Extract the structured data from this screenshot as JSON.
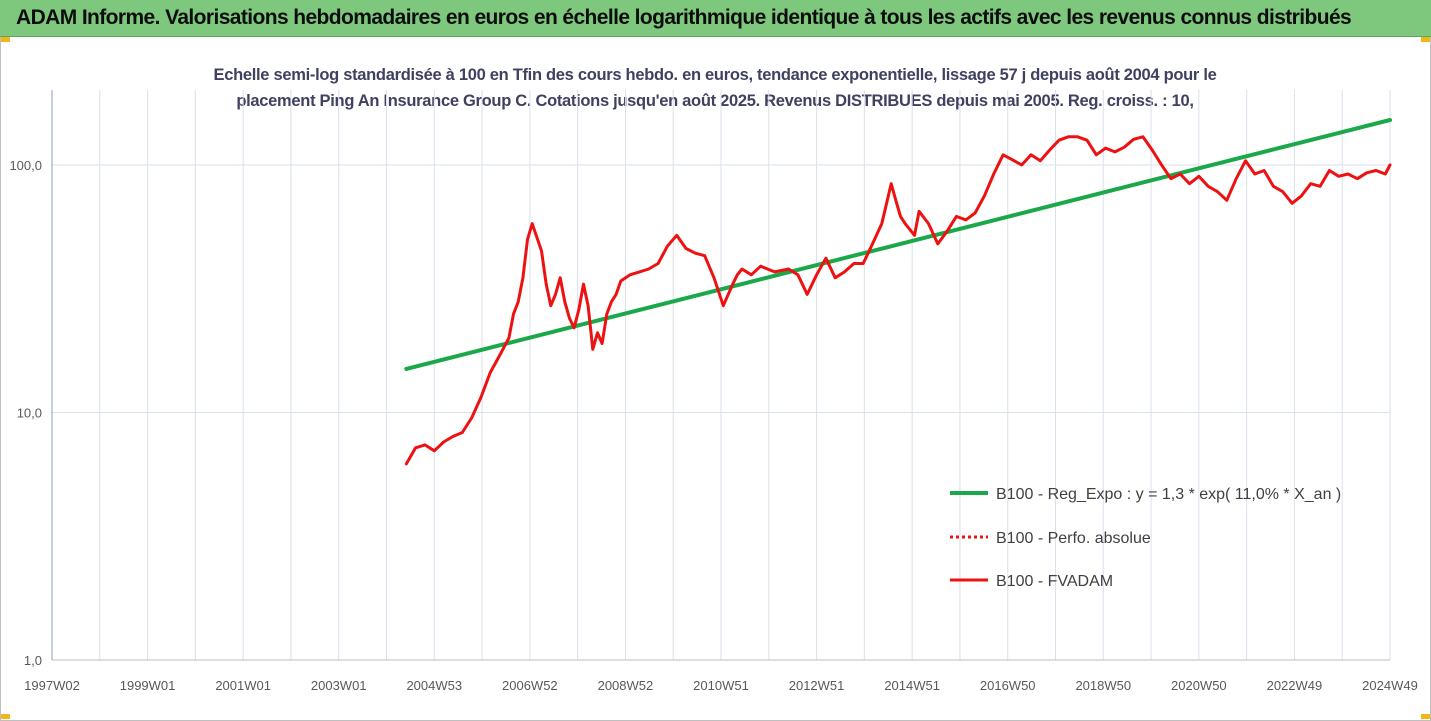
{
  "header": {
    "title": "ADAM Informe. Valorisations hebdomadaires en euros en échelle logarithmique identique à tous les actifs avec les revenus connus distribués"
  },
  "colors": {
    "banner": "#7dc87d",
    "regression": "#1aa84a",
    "fvadam": "#ee1111",
    "grid": "#d9e1ec"
  },
  "chart_data": {
    "type": "line",
    "title_line1": "Echelle semi-log standardisée à 100 en Tfin des cours hebdo. en euros, tendance exponentielle, lissage 57 j depuis août 2004 pour le",
    "title_line2": "placement Ping An Insurance Group C. Cotations jusqu'en août 2025.  Revenus DISTRIBUES depuis mai 2005. Reg. croiss. : 10,",
    "y_scale": "log",
    "ylim": [
      1,
      200
    ],
    "y_ticks": [
      "1,0",
      "10,0",
      "100,0"
    ],
    "x_tick_labels": [
      "1997W02",
      "1999W01",
      "2001W01",
      "2003W01",
      "2004W53",
      "2006W52",
      "2008W52",
      "2010W51",
      "2012W51",
      "2014W51",
      "2016W50",
      "2018W50",
      "2020W50",
      "2022W49",
      "2024W49"
    ],
    "x_range": [
      1997.0,
      2025.7
    ],
    "grid": "vertical",
    "legend_position": "right",
    "series": [
      {
        "name": "B100 - Reg_Expo : y = 1,3 * exp( 11,0% *  X_an )",
        "style": "solid-thick",
        "color": "#1aa84a",
        "x": [
          2004.6,
          2025.7
        ],
        "y": [
          15.0,
          152.0
        ]
      },
      {
        "name": "B100 - Perfo. absolue",
        "style": "dotted",
        "color": "#ee1111",
        "x": [],
        "y": []
      },
      {
        "name": "B100 - FVADAM",
        "style": "solid",
        "color": "#ee1111",
        "x": [
          2004.6,
          2004.8,
          2005.0,
          2005.2,
          2005.4,
          2005.6,
          2005.8,
          2006.0,
          2006.2,
          2006.4,
          2006.6,
          2006.8,
          2006.9,
          2007.0,
          2007.1,
          2007.2,
          2007.3,
          2007.5,
          2007.6,
          2007.7,
          2007.8,
          2007.9,
          2008.0,
          2008.1,
          2008.2,
          2008.3,
          2008.4,
          2008.5,
          2008.6,
          2008.7,
          2008.8,
          2008.9,
          2009.0,
          2009.1,
          2009.2,
          2009.4,
          2009.6,
          2009.8,
          2010.0,
          2010.2,
          2010.4,
          2010.6,
          2010.8,
          2011.0,
          2011.2,
          2011.4,
          2011.6,
          2011.7,
          2011.8,
          2012.0,
          2012.2,
          2012.5,
          2012.8,
          2013.0,
          2013.2,
          2013.4,
          2013.6,
          2013.8,
          2014.0,
          2014.2,
          2014.4,
          2014.6,
          2014.8,
          2015.0,
          2015.1,
          2015.2,
          2015.3,
          2015.5,
          2015.6,
          2015.8,
          2016.0,
          2016.2,
          2016.4,
          2016.6,
          2016.8,
          2017.0,
          2017.2,
          2017.4,
          2017.6,
          2017.8,
          2018.0,
          2018.2,
          2018.4,
          2018.6,
          2018.8,
          2019.0,
          2019.2,
          2019.4,
          2019.6,
          2019.8,
          2020.0,
          2020.2,
          2020.4,
          2020.6,
          2020.8,
          2021.0,
          2021.2,
          2021.4,
          2021.6,
          2021.8,
          2022.0,
          2022.2,
          2022.4,
          2022.6,
          2022.8,
          2023.0,
          2023.2,
          2023.4,
          2023.6,
          2023.8,
          2024.0,
          2024.2,
          2024.4,
          2024.6,
          2024.8,
          2025.0,
          2025.2,
          2025.4,
          2025.6,
          2025.7
        ],
        "y": [
          6.2,
          7.2,
          7.4,
          7.0,
          7.6,
          8.0,
          8.3,
          9.5,
          11.5,
          14.5,
          17.0,
          20.0,
          25.0,
          28.0,
          35.0,
          50.0,
          58.0,
          45.0,
          33.0,
          27.0,
          30.0,
          35.0,
          28.0,
          24.0,
          22.0,
          26.0,
          33.0,
          27.0,
          18.0,
          21.0,
          19.0,
          25.0,
          28.0,
          30.0,
          34.0,
          36.0,
          37.0,
          38.0,
          40.0,
          47.0,
          52.0,
          46.0,
          44.0,
          43.0,
          35.0,
          27.0,
          33.0,
          36.0,
          38.0,
          36.0,
          39.0,
          37.0,
          38.0,
          36.0,
          30.0,
          36.0,
          42.0,
          35.0,
          37.0,
          40.0,
          40.0,
          48.0,
          58.0,
          84.0,
          72.0,
          62.0,
          58.0,
          52.0,
          65.0,
          58.0,
          48.0,
          54.0,
          62.0,
          60.0,
          64.0,
          75.0,
          92.0,
          110.0,
          105.0,
          100.0,
          110.0,
          104.0,
          115.0,
          126.0,
          130.0,
          130.0,
          126.0,
          110.0,
          117.0,
          113.0,
          118.0,
          127.0,
          130.0,
          115.0,
          100.0,
          88.0,
          92.0,
          84.0,
          90.0,
          82.0,
          78.0,
          72.0,
          88.0,
          104.0,
          92.0,
          95.0,
          82.0,
          78.0,
          70.0,
          75.0,
          84.0,
          82.0,
          95.0,
          90.0,
          92.0,
          88.0,
          93.0,
          95.0,
          92.0,
          100.0
        ]
      }
    ]
  }
}
